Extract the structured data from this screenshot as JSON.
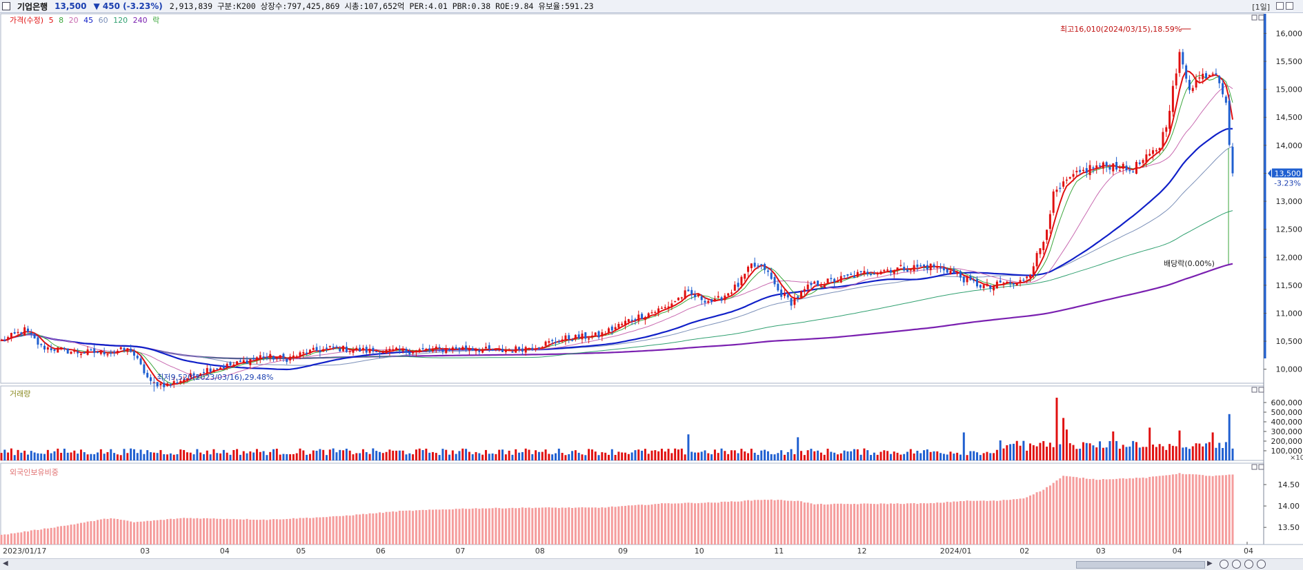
{
  "header": {
    "name": "기업은행",
    "price": "13,500",
    "change": "▼ 450 (-3.23%)",
    "info": "2,913,839  구분:K200  상장수:797,425,869  시총:107,652억  PER:4.01  PBR:0.38  ROE:9.84  유보율:591.23",
    "period": "[1일]"
  },
  "price_legend": {
    "main": "가격(수정)",
    "ma": [
      "5",
      "8",
      "20",
      "45",
      "60",
      "120",
      "240"
    ],
    "extra": "락"
  },
  "volume_legend": "거래량",
  "foreign_legend": "외국인보유비중",
  "annotations": {
    "high": "최고16,010(2024/03/15),18.59%",
    "low": "최저9,520(2023/03/16),29.48%",
    "dividend": "배당락(0.00%)",
    "last_price": "13,500",
    "last_change": "-3.23%",
    "volume_unit": "×10"
  },
  "colors": {
    "up": "#e01010",
    "down": "#1f5fd0",
    "ma5": "#e01010",
    "ma8": "#3aa53a",
    "ma20": "#c86ab0",
    "ma45": "#1020c8",
    "ma60": "#7a8fb8",
    "ma120": "#30a070",
    "ma240": "#7a20b0",
    "foreign": "#f59c9c"
  },
  "chart_data": [
    {
      "type": "candlestick",
      "title": "",
      "x_ticks": [
        "2023/01/17",
        "03",
        "04",
        "05",
        "06",
        "07",
        "08",
        "09",
        "10",
        "11",
        "12",
        "2024/01",
        "02",
        "03",
        "04"
      ],
      "y_ticks": [
        "16,000",
        "15,500",
        "15,000",
        "14,500",
        "14,000",
        "13,500",
        "13,000",
        "12,500",
        "12,000",
        "11,500",
        "11,000",
        "10,500",
        "10,000"
      ],
      "ylim": [
        9750,
        16350
      ],
      "close_anchors": [
        [
          0,
          10500
        ],
        [
          7,
          10700
        ],
        [
          12,
          10400
        ],
        [
          23,
          10300
        ],
        [
          30,
          10300
        ],
        [
          39,
          10350
        ],
        [
          45,
          9750
        ],
        [
          50,
          9720
        ],
        [
          56,
          9850
        ],
        [
          62,
          10000
        ],
        [
          70,
          10080
        ],
        [
          78,
          10230
        ],
        [
          86,
          10190
        ],
        [
          92,
          10300
        ],
        [
          100,
          10380
        ],
        [
          110,
          10330
        ],
        [
          120,
          10320
        ],
        [
          130,
          10350
        ],
        [
          140,
          10380
        ],
        [
          150,
          10320
        ],
        [
          160,
          10400
        ],
        [
          170,
          10550
        ],
        [
          180,
          10600
        ],
        [
          190,
          10900
        ],
        [
          200,
          11100
        ],
        [
          206,
          11350
        ],
        [
          215,
          11200
        ],
        [
          222,
          11500
        ],
        [
          226,
          11850
        ],
        [
          230,
          11800
        ],
        [
          234,
          11400
        ],
        [
          238,
          11200
        ],
        [
          244,
          11500
        ],
        [
          252,
          11600
        ],
        [
          262,
          11750
        ],
        [
          270,
          11800
        ],
        [
          280,
          11840
        ],
        [
          285,
          11780
        ],
        [
          292,
          11550
        ],
        [
          298,
          11450
        ],
        [
          302,
          11550
        ],
        [
          306,
          11500
        ],
        [
          310,
          11750
        ],
        [
          314,
          12300
        ],
        [
          317,
          13100
        ],
        [
          322,
          13400
        ],
        [
          328,
          13600
        ],
        [
          335,
          13650
        ],
        [
          340,
          13550
        ],
        [
          346,
          13800
        ],
        [
          349,
          14000
        ],
        [
          351,
          14400
        ],
        [
          355,
          15600
        ],
        [
          358,
          15050
        ],
        [
          362,
          15250
        ],
        [
          366,
          15350
        ],
        [
          369,
          14800
        ],
        [
          370,
          13950
        ],
        [
          371,
          13500
        ]
      ],
      "ma_series": [
        "5",
        "8",
        "20",
        "45",
        "60",
        "120",
        "240"
      ],
      "high_marker": {
        "value": 16010,
        "date": "2024/03/15"
      },
      "low_marker": {
        "value": 9520,
        "date": "2023/03/16"
      }
    },
    {
      "type": "bar",
      "title": "",
      "y_ticks": [
        "600,000",
        "500,000",
        "400,000",
        "300,000",
        "200,000",
        "100,000"
      ],
      "ylim": [
        0,
        700000
      ],
      "spikes": [
        [
          207,
          270000
        ],
        [
          240,
          240000
        ],
        [
          290,
          290000
        ],
        [
          318,
          650000
        ],
        [
          320,
          440000
        ],
        [
          321,
          320000
        ],
        [
          335,
          300000
        ],
        [
          346,
          340000
        ],
        [
          355,
          310000
        ],
        [
          365,
          290000
        ],
        [
          370,
          480000
        ]
      ]
    },
    {
      "type": "bar",
      "title": "",
      "y_ticks": [
        "14.50",
        "14.00",
        "13.50"
      ],
      "ylim": [
        13.1,
        15.0
      ],
      "anchors": [
        [
          0,
          13.32
        ],
        [
          20,
          13.55
        ],
        [
          33,
          13.72
        ],
        [
          40,
          13.62
        ],
        [
          55,
          13.72
        ],
        [
          80,
          13.68
        ],
        [
          100,
          13.75
        ],
        [
          120,
          13.88
        ],
        [
          140,
          13.94
        ],
        [
          160,
          13.96
        ],
        [
          180,
          13.96
        ],
        [
          200,
          14.06
        ],
        [
          215,
          14.08
        ],
        [
          230,
          14.15
        ],
        [
          240,
          14.12
        ],
        [
          245,
          14.04
        ],
        [
          260,
          14.05
        ],
        [
          280,
          14.06
        ],
        [
          290,
          14.12
        ],
        [
          300,
          14.12
        ],
        [
          308,
          14.18
        ],
        [
          314,
          14.38
        ],
        [
          320,
          14.7
        ],
        [
          330,
          14.62
        ],
        [
          345,
          14.66
        ],
        [
          355,
          14.76
        ],
        [
          365,
          14.7
        ],
        [
          371,
          14.73
        ]
      ]
    }
  ]
}
